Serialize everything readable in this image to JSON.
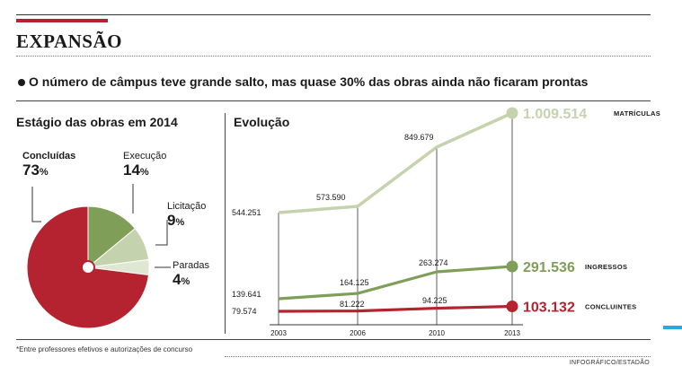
{
  "header": {
    "title": "EXPANSÃO",
    "subtitle": "O número de câmpus teve grande salto, mas quase 30% das obras ainda não ficaram prontas"
  },
  "footnote": "*Entre professores efetivos e autorizações de concurso",
  "credit": "INFOGRÁFICO/ESTADÃO",
  "colors": {
    "accent_red": "#b4232f",
    "light_green": "#c4d3ad",
    "mid_green": "#7f9e57",
    "pale_green": "#dfe6d1",
    "cyan": "#2aa8d8"
  },
  "chart_data": [
    {
      "type": "pie",
      "title": "Estágio das obras em 2014",
      "unit": "%",
      "slices": [
        {
          "name": "Concluídas",
          "value": 73,
          "color": "#b4232f"
        },
        {
          "name": "Execução",
          "value": 14,
          "color": "#7f9e57"
        },
        {
          "name": "Licitação",
          "value": 9,
          "color": "#c4d3ad"
        },
        {
          "name": "Paradas",
          "value": 4,
          "color": "#dfe6d1"
        }
      ]
    },
    {
      "type": "line",
      "title": "Evolução",
      "x": [
        "2003",
        "2006",
        "2010",
        "2013"
      ],
      "series": [
        {
          "name": "MATRÍCULAS",
          "color": "#c4d3ad",
          "values": [
            544251,
            573590,
            849679,
            1009514
          ],
          "labels": [
            "544.251",
            "573.590",
            "849.679",
            "1.009.514"
          ]
        },
        {
          "name": "INGRESSOS",
          "color": "#7f9e57",
          "values": [
            139641,
            164125,
            263274,
            291536
          ],
          "labels": [
            "139.641",
            "164.125",
            "263.274",
            "291.536"
          ]
        },
        {
          "name": "CONCLUINTES",
          "color": "#b4232f",
          "values": [
            79574,
            81222,
            94225,
            103132
          ],
          "labels": [
            "79.574",
            "81.222",
            "94.225",
            "103.132"
          ]
        }
      ]
    }
  ]
}
